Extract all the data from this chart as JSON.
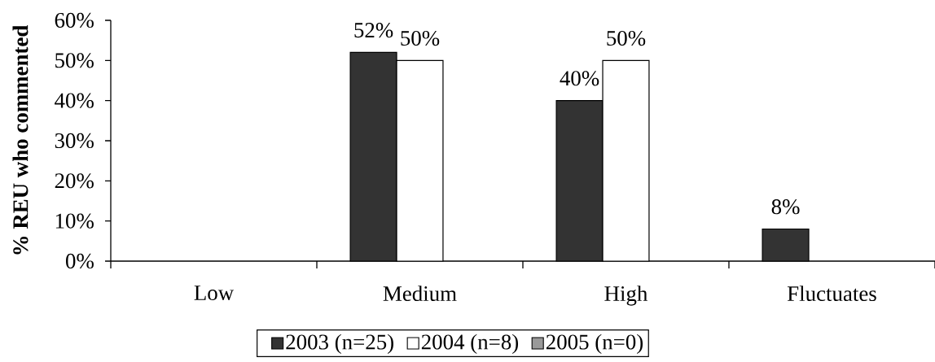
{
  "chart_data": {
    "type": "bar",
    "ylabel": "% REU who commented",
    "categories": [
      "Low",
      "Medium",
      "High",
      "Fluctuates"
    ],
    "series": [
      {
        "name": "2003 (n=25)",
        "color": "#333333",
        "values": [
          null,
          52,
          40,
          8
        ],
        "value_labels": [
          null,
          "52%",
          "40%",
          "8%"
        ]
      },
      {
        "name": "2004 (n=8)",
        "color": "#ffffff",
        "values": [
          null,
          50,
          50,
          null
        ],
        "value_labels": [
          null,
          "50%",
          "50%",
          null
        ]
      },
      {
        "name": "2005 (n=0)",
        "color": "#999999",
        "values": [
          null,
          null,
          null,
          null
        ]
      }
    ],
    "ylim": [
      0,
      60
    ],
    "yticks": [
      {
        "value": 0,
        "label": "0%"
      },
      {
        "value": 10,
        "label": "10%"
      },
      {
        "value": 20,
        "label": "20%"
      },
      {
        "value": 30,
        "label": "30%"
      },
      {
        "value": 40,
        "label": "40%"
      },
      {
        "value": 50,
        "label": "50%"
      },
      {
        "value": 60,
        "label": "60%"
      }
    ],
    "legend": "bottom"
  }
}
